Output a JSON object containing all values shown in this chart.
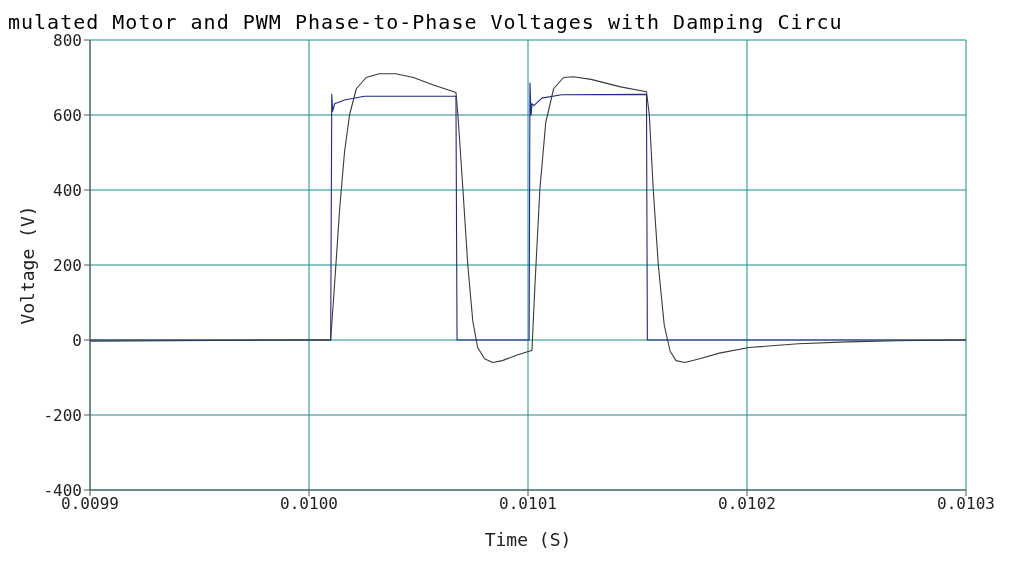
{
  "chart_data": {
    "type": "line",
    "title": "mulated Motor and PWM Phase-to-Phase Voltages with Damping Circu",
    "xlabel": "Time (S)",
    "ylabel": "Voltage (V)",
    "xlim": [
      0.0099,
      0.0103
    ],
    "xticks": [
      0.0099,
      {
        "value": 0.01,
        "label": "0.0100"
      },
      0.0101,
      0.0102,
      0.0103
    ],
    "ylim": [
      -400,
      800
    ],
    "yticks": [
      -400,
      -200,
      0,
      200,
      400,
      600,
      800
    ],
    "grid": true,
    "marker": "none",
    "line_style": "solid",
    "series": [
      {
        "color": "#1f2a8a",
        "x": [
          0.0099,
          0.0100099,
          0.0100104,
          0.0100108,
          0.0100117,
          0.0100162,
          0.0100252,
          0.0100671,
          0.0100676,
          0.0101005,
          0.0101009,
          0.0101014,
          0.0101018,
          0.0101027,
          0.0101063,
          0.0101153,
          0.0101541,
          0.0101545,
          0.0103
        ],
        "values": [
          0,
          0,
          655,
          610,
          630,
          640,
          650,
          650,
          0,
          0,
          685,
          600,
          630,
          625,
          645,
          654,
          655,
          0,
          0
        ]
      },
      {
        "color": "#3a3a3a",
        "x": [
          0.0099,
          0.0099982,
          0.0100099,
          0.0100117,
          0.010014,
          0.0100162,
          0.0100185,
          0.0100216,
          0.0100261,
          0.010032,
          0.0100396,
          0.0100477,
          0.0100568,
          0.0100671,
          0.010068,
          0.0100703,
          0.0100725,
          0.0100748,
          0.010077,
          0.0100802,
          0.0100838,
          0.0100883,
          0.010095,
          0.0101005,
          0.0101018,
          0.0101032,
          0.0101054,
          0.0101081,
          0.0101117,
          0.0101162,
          0.0101207,
          0.0101288,
          0.0101423,
          0.0101541,
          0.0101554,
          0.0101572,
          0.0101595,
          0.0101622,
          0.0101649,
          0.0101676,
          0.0101716,
          0.0101784,
          0.0101874,
          0.0102009,
          0.0102234,
          0.0102459,
          0.0102685,
          0.0103
        ],
        "values": [
          -3,
          0,
          0,
          150,
          350,
          500,
          600,
          670,
          700,
          710,
          710,
          700,
          680,
          660,
          600,
          400,
          200,
          50,
          -20,
          -50,
          -60,
          -55,
          -40,
          -30,
          -28,
          150,
          400,
          580,
          670,
          700,
          702,
          695,
          675,
          662,
          600,
          400,
          200,
          40,
          -30,
          -55,
          -60,
          -50,
          -35,
          -20,
          -10,
          -5,
          -2,
          0
        ]
      }
    ]
  }
}
